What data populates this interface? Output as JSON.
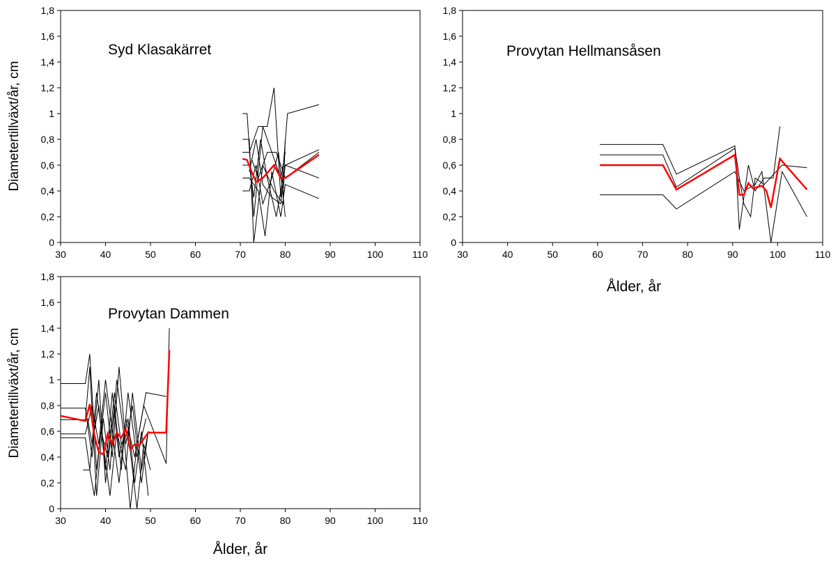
{
  "chart_data": [
    {
      "type": "line",
      "title": "Syd Klasakärret",
      "ylabel": "Diametertillväxt/år, cm",
      "xlabel": "",
      "xlim": [
        30,
        110
      ],
      "ylim": [
        0,
        1.8
      ],
      "x_ticks": [
        "30",
        "40",
        "50",
        "60",
        "70",
        "80",
        "90",
        "100",
        "110"
      ],
      "y_ticks": [
        "0",
        "0,2",
        "0,4",
        "0,6",
        "0,8",
        "1",
        "1,2",
        "1,4",
        "1,6",
        "1,8"
      ],
      "colors": {
        "individual": "#000000",
        "mean": "#ff0000"
      },
      "series": [
        {
          "values": [
            [
              70.5,
              1.0
            ],
            [
              71.5,
              1.0
            ],
            [
              73,
              0.2
            ],
            [
              75,
              0.9
            ],
            [
              77,
              0.7
            ],
            [
              79,
              0.5
            ],
            [
              80,
              0.7
            ]
          ]
        },
        {
          "values": [
            [
              70.5,
              0.8
            ],
            [
              72,
              0.8
            ],
            [
              73,
              0.0
            ],
            [
              75,
              0.6
            ],
            [
              77.5,
              0.4
            ],
            [
              79.5,
              0.3
            ],
            [
              80,
              0.8
            ]
          ]
        },
        {
          "values": [
            [
              70.5,
              0.7
            ],
            [
              72,
              0.7
            ],
            [
              74,
              0.9
            ],
            [
              76,
              0.9
            ],
            [
              77.5,
              1.2
            ],
            [
              79,
              0.35
            ],
            [
              80.5,
              1.0
            ],
            [
              87.5,
              1.07
            ]
          ]
        },
        {
          "values": [
            [
              70.5,
              0.6
            ],
            [
              72,
              0.6
            ],
            [
              73,
              0.35
            ],
            [
              74.5,
              0.8
            ],
            [
              76,
              0.5
            ],
            [
              78,
              0.2
            ],
            [
              80,
              0.6
            ],
            [
              87.5,
              0.72
            ]
          ]
        },
        {
          "values": [
            [
              70.5,
              0.5
            ],
            [
              72,
              0.5
            ],
            [
              74,
              0.4
            ],
            [
              75.5,
              0.05
            ],
            [
              77,
              0.55
            ],
            [
              79,
              0.2
            ],
            [
              80,
              0.45
            ],
            [
              87.5,
              0.34
            ]
          ]
        },
        {
          "values": [
            [
              70.5,
              0.4
            ],
            [
              72,
              0.4
            ],
            [
              73.5,
              0.6
            ],
            [
              75,
              0.3
            ],
            [
              77,
              0.5
            ],
            [
              78.5,
              0.7
            ],
            [
              80,
              0.2
            ]
          ]
        },
        {
          "values": [
            [
              72,
              0.55
            ],
            [
              73.5,
              0.8
            ],
            [
              75,
              0.45
            ],
            [
              77,
              0.35
            ],
            [
              79,
              0.3
            ],
            [
              80,
              0.6
            ],
            [
              87.5,
              0.5
            ]
          ]
        },
        {
          "values": [
            [
              72.5,
              0.65
            ],
            [
              74,
              0.5
            ],
            [
              76,
              0.7
            ],
            [
              78,
              0.7
            ],
            [
              79.5,
              0.55
            ],
            [
              80,
              0.5
            ],
            [
              87.5,
              0.7
            ]
          ]
        }
      ],
      "mean": {
        "name": "",
        "values": [
          [
            70.5,
            0.65
          ],
          [
            71.5,
            0.64
          ],
          [
            72.5,
            0.55
          ],
          [
            73.5,
            0.47
          ],
          [
            75,
            0.5
          ],
          [
            77.5,
            0.6
          ],
          [
            79,
            0.5
          ],
          [
            80,
            0.5
          ],
          [
            87.5,
            0.68
          ]
        ]
      }
    },
    {
      "type": "line",
      "title": "Provytan Hellmansåsen",
      "ylabel": "",
      "xlabel": "Ålder, år",
      "xlim": [
        30,
        110
      ],
      "ylim": [
        0,
        1.8
      ],
      "x_ticks": [
        "30",
        "40",
        "50",
        "60",
        "70",
        "80",
        "90",
        "100",
        "110"
      ],
      "y_ticks": [
        "0",
        "0,2",
        "0,4",
        "0,6",
        "0,8",
        "1",
        "1,2",
        "1,4",
        "1,6",
        "1,8"
      ],
      "colors": {
        "individual": "#000000",
        "mean": "#ff0000"
      },
      "series": [
        {
          "values": [
            [
              60.5,
              0.76
            ],
            [
              74.5,
              0.76
            ],
            [
              77.5,
              0.53
            ],
            [
              90.5,
              0.75
            ],
            [
              91.5,
              0.1
            ],
            [
              93.5,
              0.6
            ],
            [
              95,
              0.4
            ],
            [
              97,
              0.5
            ],
            [
              99,
              0.5
            ],
            [
              100.5,
              0.9
            ]
          ]
        },
        {
          "values": [
            [
              60.5,
              0.68
            ],
            [
              74.5,
              0.68
            ],
            [
              77.5,
              0.43
            ],
            [
              90.5,
              0.73
            ],
            [
              91.5,
              0.5
            ],
            [
              92.5,
              0.3
            ],
            [
              94,
              0.2
            ],
            [
              95,
              0.5
            ],
            [
              97,
              0.45
            ],
            [
              101,
              0.6
            ],
            [
              106.5,
              0.58
            ]
          ]
        },
        {
          "values": [
            [
              60.5,
              0.37
            ],
            [
              74.5,
              0.37
            ],
            [
              77.5,
              0.26
            ],
            [
              90.5,
              0.55
            ],
            [
              92.5,
              0.4
            ],
            [
              95,
              0.45
            ],
            [
              96.5,
              0.55
            ],
            [
              98.5,
              0.0
            ],
            [
              101,
              0.55
            ],
            [
              106.5,
              0.2
            ]
          ]
        }
      ],
      "mean": {
        "name": "",
        "values": [
          [
            60.5,
            0.6
          ],
          [
            74.5,
            0.6
          ],
          [
            77.5,
            0.41
          ],
          [
            90.5,
            0.68
          ],
          [
            91.5,
            0.37
          ],
          [
            92.5,
            0.37
          ],
          [
            93.5,
            0.46
          ],
          [
            94.5,
            0.42
          ],
          [
            96.5,
            0.44
          ],
          [
            97.5,
            0.4
          ],
          [
            98.5,
            0.27
          ],
          [
            100.5,
            0.65
          ],
          [
            106.5,
            0.41
          ]
        ]
      }
    },
    {
      "type": "line",
      "title": "Provytan Dammen",
      "ylabel": "Diametertillväxt/år, cm",
      "xlabel": "Ålder, år",
      "xlim": [
        30,
        110
      ],
      "ylim": [
        0,
        1.8
      ],
      "x_ticks": [
        "30",
        "40",
        "50",
        "60",
        "70",
        "80",
        "90",
        "100",
        "110"
      ],
      "y_ticks": [
        "0",
        "0,2",
        "0,4",
        "0,6",
        "0,8",
        "1",
        "1,2",
        "1,4",
        "1,6",
        "1,8"
      ],
      "colors": {
        "individual": "#000000",
        "mean": "#ff0000"
      },
      "series": [
        {
          "values": [
            [
              30,
              0.97
            ],
            [
              35.5,
              0.97
            ],
            [
              36.5,
              1.2
            ],
            [
              38,
              0.3
            ],
            [
              40,
              0.9
            ],
            [
              41.5,
              0.4
            ],
            [
              43,
              1.1
            ],
            [
              44.5,
              0.5
            ],
            [
              46,
              0.8
            ],
            [
              48,
              0.2
            ],
            [
              49.5,
              0.6
            ]
          ]
        },
        {
          "values": [
            [
              30,
              0.78
            ],
            [
              35.5,
              0.78
            ],
            [
              37,
              0.4
            ],
            [
              38.5,
              1.0
            ],
            [
              40,
              0.2
            ],
            [
              42,
              0.8
            ],
            [
              43.5,
              0.3
            ],
            [
              45,
              0.9
            ],
            [
              47,
              0.4
            ],
            [
              49,
              0.7
            ]
          ]
        },
        {
          "values": [
            [
              30,
              0.69
            ],
            [
              35.5,
              0.69
            ],
            [
              36.5,
              1.1
            ],
            [
              38,
              0.1
            ],
            [
              39.5,
              0.7
            ],
            [
              41,
              0.3
            ],
            [
              42.5,
              1.0
            ],
            [
              44,
              0.6
            ],
            [
              45.5,
              0.0
            ],
            [
              47,
              0.5
            ],
            [
              49,
              0.9
            ],
            [
              53.5,
              0.87
            ]
          ]
        },
        {
          "values": [
            [
              30,
              0.58
            ],
            [
              35.5,
              0.58
            ],
            [
              37,
              0.8
            ],
            [
              38.5,
              0.5
            ],
            [
              40,
              1.0
            ],
            [
              41.5,
              0.6
            ],
            [
              43,
              0.2
            ],
            [
              44.5,
              0.7
            ],
            [
              46.5,
              0.4
            ],
            [
              48.5,
              0.8
            ],
            [
              53.5,
              0.35
            ],
            [
              54.2,
              1.4
            ]
          ]
        },
        {
          "values": [
            [
              30,
              0.55
            ],
            [
              35.5,
              0.55
            ],
            [
              36.5,
              0.3
            ],
            [
              38,
              0.9
            ],
            [
              39.5,
              0.5
            ],
            [
              41,
              0.1
            ],
            [
              42.5,
              0.6
            ],
            [
              44.5,
              0.3
            ],
            [
              46,
              0.9
            ],
            [
              48,
              0.3
            ],
            [
              49.5,
              0.6
            ]
          ]
        },
        {
          "values": [
            [
              35,
              0.3
            ],
            [
              36.5,
              0.3
            ],
            [
              37.5,
              0.1
            ],
            [
              39,
              0.6
            ],
            [
              40.5,
              0.4
            ],
            [
              42,
              0.9
            ],
            [
              43.5,
              0.5
            ],
            [
              45,
              0.6
            ],
            [
              47,
              0.0
            ],
            [
              48.5,
              0.5
            ],
            [
              50,
              0.3
            ]
          ]
        },
        {
          "values": [
            [
              36,
              0.7
            ],
            [
              37,
              0.5
            ],
            [
              38.5,
              0.8
            ],
            [
              40,
              0.3
            ],
            [
              41.5,
              0.9
            ],
            [
              43,
              0.4
            ],
            [
              45,
              0.7
            ],
            [
              46.5,
              0.2
            ],
            [
              48,
              0.6
            ],
            [
              49.5,
              0.1
            ]
          ]
        }
      ],
      "mean": {
        "name": "",
        "values": [
          [
            30,
            0.72
          ],
          [
            35.5,
            0.68
          ],
          [
            36.5,
            0.81
          ],
          [
            37.5,
            0.57
          ],
          [
            38.5,
            0.44
          ],
          [
            39.5,
            0.42
          ],
          [
            40.5,
            0.58
          ],
          [
            41.5,
            0.5
          ],
          [
            42.5,
            0.59
          ],
          [
            43.5,
            0.55
          ],
          [
            44.5,
            0.62
          ],
          [
            45.5,
            0.46
          ],
          [
            46.5,
            0.5
          ],
          [
            47.5,
            0.49
          ],
          [
            48.5,
            0.54
          ],
          [
            49.5,
            0.59
          ],
          [
            53.5,
            0.59
          ],
          [
            54.2,
            1.23
          ]
        ]
      }
    }
  ]
}
